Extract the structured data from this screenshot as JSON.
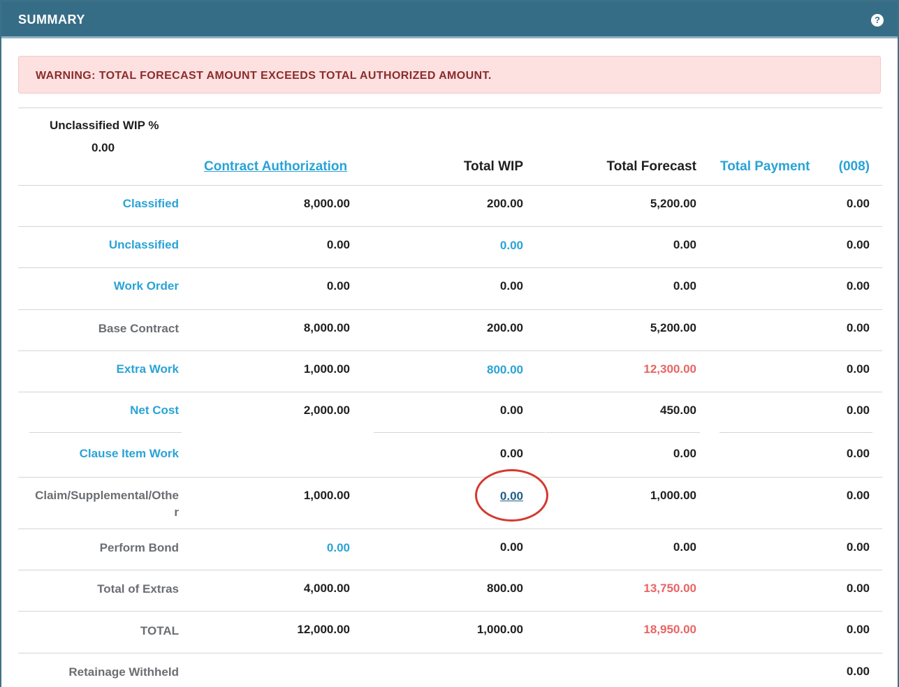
{
  "header": {
    "title": "SUMMARY",
    "help_icon": "question-circle-icon"
  },
  "warning": {
    "text": "WARNING: TOTAL FORECAST AMOUNT EXCEEDS TOTAL AUTHORIZED AMOUNT."
  },
  "unclassified_wip": {
    "label": "Unclassified WIP %",
    "value": "0.00"
  },
  "columns": {
    "contract_authorization": "Contract Authorization",
    "total_wip": "Total WIP",
    "total_forecast": "Total Forecast",
    "total_payment": "Total Payment",
    "payment_count": "(008)"
  },
  "rows": [
    {
      "label": "Classified",
      "contract": "8,000.00",
      "wip": "200.00",
      "forecast": "5,200.00",
      "payment": "0.00"
    },
    {
      "label": "Unclassified",
      "contract": "0.00",
      "wip": "0.00",
      "forecast": "0.00",
      "payment": "0.00"
    },
    {
      "label": "Work Order",
      "contract": "0.00",
      "wip": "0.00",
      "forecast": "0.00",
      "payment": "0.00"
    },
    {
      "label": "Base Contract",
      "contract": "8,000.00",
      "wip": "200.00",
      "forecast": "5,200.00",
      "payment": "0.00"
    },
    {
      "label": "Extra Work",
      "contract": "1,000.00",
      "wip": "800.00",
      "forecast": "12,300.00",
      "payment": "0.00"
    },
    {
      "label": "Net Cost",
      "contract": "2,000.00",
      "wip": "0.00",
      "forecast": "450.00",
      "payment": "0.00"
    },
    {
      "label": "Clause Item Work",
      "contract": "",
      "wip": "0.00",
      "forecast": "0.00",
      "payment": "0.00"
    },
    {
      "label_line1": "Claim/Supplemental/Othe",
      "label_line2": "r",
      "contract": "1,000.00",
      "wip": "0.00",
      "forecast": "1,000.00",
      "payment": "0.00"
    },
    {
      "label": "Perform Bond",
      "contract": "0.00",
      "wip": "0.00",
      "forecast": "0.00",
      "payment": "0.00"
    },
    {
      "label": "Total of Extras",
      "contract": "4,000.00",
      "wip": "800.00",
      "forecast": "13,750.00",
      "payment": "0.00"
    },
    {
      "label": "TOTAL",
      "contract": "12,000.00",
      "wip": "1,000.00",
      "forecast": "18,950.00",
      "payment": "0.00"
    },
    {
      "label": "Retainage Withheld",
      "payment": "0.00"
    }
  ],
  "colors": {
    "header_bg": "#366d86",
    "link_blue": "#29a3d6",
    "over_red": "#e86464",
    "warning_bg": "#fde0e0",
    "warning_text": "#8b2c2c",
    "annotation_red": "#d43a2f"
  }
}
